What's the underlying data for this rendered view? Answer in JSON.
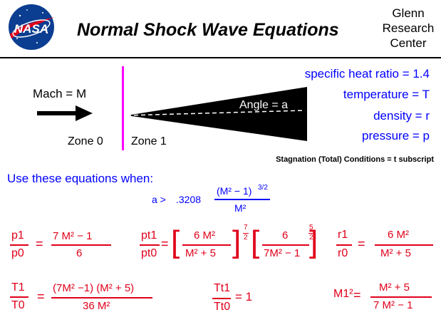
{
  "header": {
    "logo_text": "NASA",
    "title": "Normal Shock Wave Equations",
    "center_lines": [
      "Glenn",
      "Research",
      "Center"
    ]
  },
  "diagram": {
    "mach_label": "Mach = M",
    "zone0_label": "Zone 0",
    "zone1_label": "Zone 1",
    "angle_label": "Angle = a",
    "properties": [
      "specific heat ratio = 1.4",
      "temperature = T",
      "density = r",
      "pressure = p"
    ],
    "stagnation_note": "Stagnation (Total) Conditions  =  t  subscript",
    "colors": {
      "shock_line": "#ff00ff",
      "blue_text": "#0000ff",
      "red_text": "#e0001a"
    }
  },
  "conditions": {
    "heading": "Use these equations when:",
    "lhs": "a >",
    "coefficient": ".3208",
    "numerator": "(M² − 1)",
    "exponent": "3/2",
    "denominator": "M²"
  },
  "equations": {
    "pressure": {
      "lhs_num": "p1",
      "lhs_den": "p0",
      "rhs_num": "7 M² − 1",
      "rhs_den": "6"
    },
    "total_pressure": {
      "lhs_num": "pt1",
      "lhs_den": "pt0",
      "f1_num": "6 M²",
      "f1_den": "M² + 5",
      "f1_exp_num": "7",
      "f1_exp_den": "2",
      "f2_num": "6",
      "f2_den": "7M² − 1",
      "f2_exp_num": "5",
      "f2_exp_den": "2"
    },
    "density": {
      "lhs_num": "r1",
      "lhs_den": "r0",
      "rhs_num": "6 M²",
      "rhs_den": "M² + 5"
    },
    "temperature": {
      "lhs_num": "T1",
      "lhs_den": "T0",
      "rhs_num": "(7M² −1)  (M² + 5)",
      "rhs_den": "36 M²"
    },
    "total_temperature": {
      "lhs_num": "Tt1",
      "lhs_den": "Tt0",
      "rhs": "= 1"
    },
    "downstream_mach": {
      "lhs": "M1²",
      "rhs_num": "M² + 5",
      "rhs_den": "7 M² − 1"
    }
  }
}
